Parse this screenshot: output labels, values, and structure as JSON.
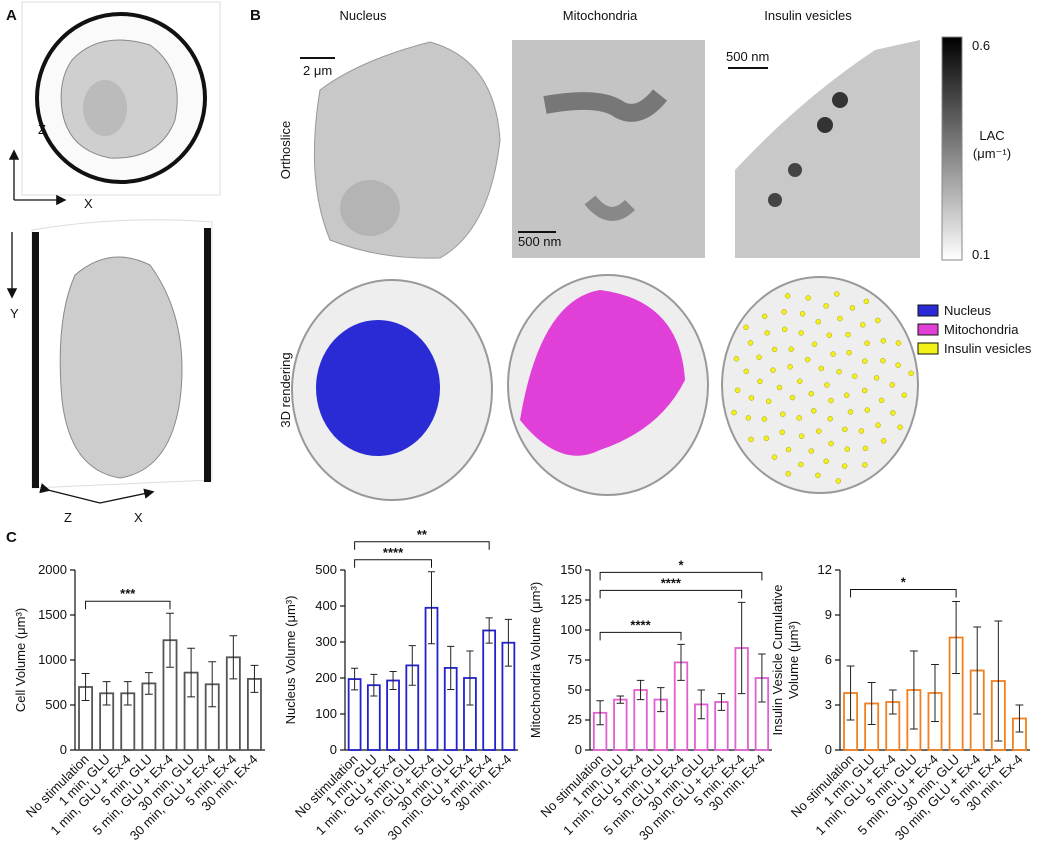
{
  "figure": {
    "panel_labels": [
      "A",
      "B",
      "C"
    ],
    "axes_a": [
      "Z",
      "X",
      "Y",
      "Z",
      "X"
    ],
    "columns": [
      "Nucleus",
      "Mitochondria",
      "Insulin vesicles"
    ],
    "rows": [
      "Orthoslice",
      "3D rendering"
    ],
    "scale_bars": [
      "2 μm",
      "500 nm",
      "500 nm"
    ],
    "colorbar": {
      "max": 0.6,
      "label": "LAC",
      "unit": "(μm⁻¹)",
      "min": 0.1
    },
    "legend": [
      {
        "name": "Nucleus",
        "color": "#2b2bd6"
      },
      {
        "name": "Mitochondria",
        "color": "#e040d8"
      },
      {
        "name": "Insulin vesicles",
        "color": "#f2f21a"
      }
    ]
  },
  "chart_data": [
    {
      "type": "bar",
      "y_label": [
        "Cell Volume (μm³)"
      ],
      "categories": [
        "No stimulation",
        "1 min, GLU",
        "1 min, GLU + Ex-4",
        "5 min, GLU",
        "5 min, GLU + Ex-4",
        "30 min, GLU",
        "30 min, GLU + Ex-4",
        "5 min, Ex-4",
        "30 min, Ex-4"
      ],
      "values": [
        700,
        630,
        630,
        740,
        1220,
        860,
        730,
        1030,
        790
      ],
      "errors": [
        150,
        130,
        130,
        120,
        300,
        270,
        250,
        240,
        150
      ],
      "color": "#555555",
      "ylim": [
        0,
        2000
      ],
      "yticks": [
        0,
        500,
        1000,
        1500,
        2000
      ],
      "annotations": [
        {
          "text": "***",
          "pair": [
            "No stimulation",
            "5 min, GLU + Ex-4"
          ]
        }
      ]
    },
    {
      "type": "bar",
      "y_label": [
        "Nucleus Volume (μm³)"
      ],
      "categories": [
        "No stimulation",
        "1 min, GLU",
        "1 min, GLU + Ex-4",
        "5 min, GLU",
        "5 min, GLU + Ex-4",
        "30 min, GLU",
        "30 min, GLU + Ex-4",
        "5 min, Ex-4",
        "30 min, Ex-4"
      ],
      "values": [
        197,
        180,
        193,
        235,
        395,
        228,
        200,
        332,
        298
      ],
      "errors": [
        30,
        30,
        25,
        55,
        100,
        60,
        75,
        35,
        65
      ],
      "color": "#2222cc",
      "ylim": [
        0,
        500
      ],
      "yticks": [
        0,
        100,
        200,
        300,
        400,
        500
      ],
      "annotations": [
        {
          "text": "****",
          "pair": [
            "No stimulation",
            "5 min, GLU + Ex-4"
          ]
        },
        {
          "text": "**",
          "pair": [
            "No stimulation",
            "5 min, Ex-4"
          ]
        }
      ]
    },
    {
      "type": "bar",
      "y_label": [
        "Mitochondria Volume (μm³)"
      ],
      "categories": [
        "No stimulation",
        "1 min, GLU",
        "1 min, GLU + Ex-4",
        "5 min, GLU",
        "5 min, GLU + Ex-4",
        "30 min, GLU",
        "30 min, GLU + Ex-4",
        "5 min, Ex-4",
        "30 min, Ex-4"
      ],
      "values": [
        31,
        42,
        50,
        42,
        73,
        38,
        40,
        85,
        60
      ],
      "errors": [
        10,
        3,
        8,
        10,
        15,
        12,
        7,
        38,
        20
      ],
      "color": "#e060d0",
      "ylim": [
        0,
        150
      ],
      "yticks": [
        0,
        25,
        50,
        75,
        100,
        125,
        150
      ],
      "annotations": [
        {
          "text": "****",
          "pair": [
            "No stimulation",
            "5 min, GLU + Ex-4"
          ]
        },
        {
          "text": "****",
          "pair": [
            "No stimulation",
            "5 min, Ex-4"
          ]
        },
        {
          "text": "*",
          "pair": [
            "No stimulation",
            "30 min, Ex-4"
          ]
        }
      ]
    },
    {
      "type": "bar",
      "y_label": [
        "Insulin Vesicle Cumulative",
        "Volume (μm³)"
      ],
      "categories": [
        "No stimulation",
        "1 min, GLU",
        "1 min, GLU + Ex-4",
        "5 min, GLU",
        "5 min, GLU + Ex-4",
        "30 min, GLU",
        "30 min, GLU + Ex-4",
        "5 min, Ex-4",
        "30 min, Ex-4"
      ],
      "values": [
        3.8,
        3.1,
        3.2,
        4.0,
        3.8,
        7.5,
        5.3,
        4.6,
        2.1
      ],
      "errors": [
        1.8,
        1.4,
        0.8,
        2.6,
        1.9,
        2.4,
        2.9,
        4.0,
        0.9
      ],
      "color": "#f08020",
      "ylim": [
        0,
        12
      ],
      "yticks": [
        0,
        3,
        6,
        9,
        12
      ],
      "annotations": [
        {
          "text": "*",
          "pair": [
            "No stimulation",
            "30 min, GLU"
          ]
        }
      ]
    }
  ]
}
